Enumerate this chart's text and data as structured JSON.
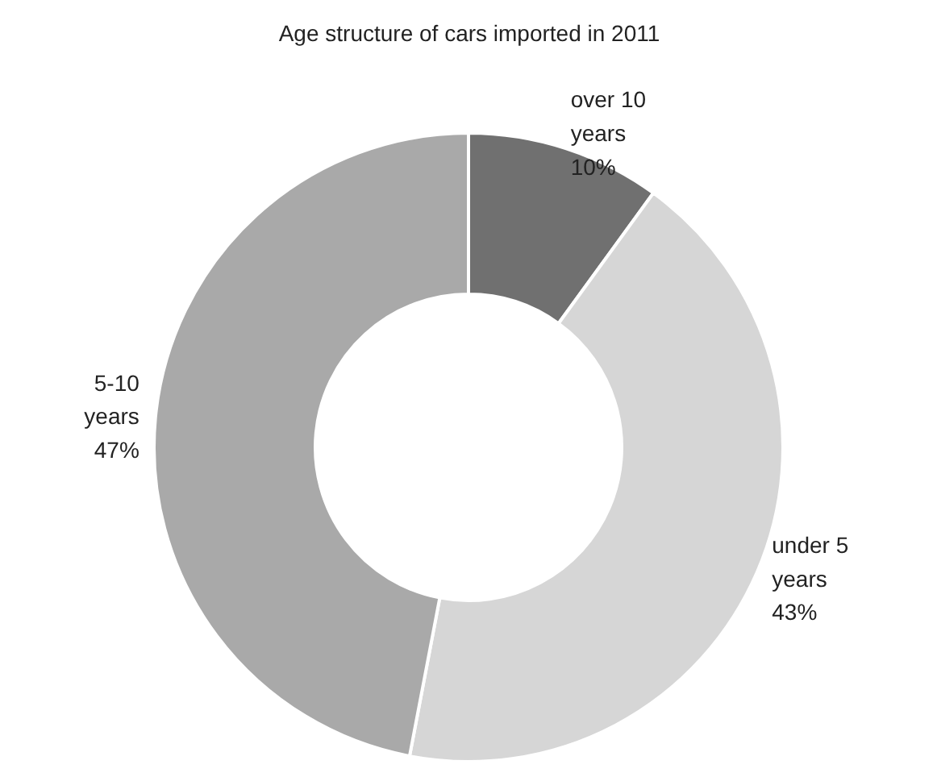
{
  "chart_data": {
    "type": "donut",
    "title": "Age structure of cars imported in 2011",
    "categories": [
      "over 10 years",
      "under 5 years",
      "5-10 years"
    ],
    "values": [
      10,
      43,
      47
    ],
    "colors": [
      "#707070",
      "#d6d6d6",
      "#a9a9a9"
    ],
    "value_labels": [
      "10%",
      "43%",
      "47%"
    ]
  }
}
